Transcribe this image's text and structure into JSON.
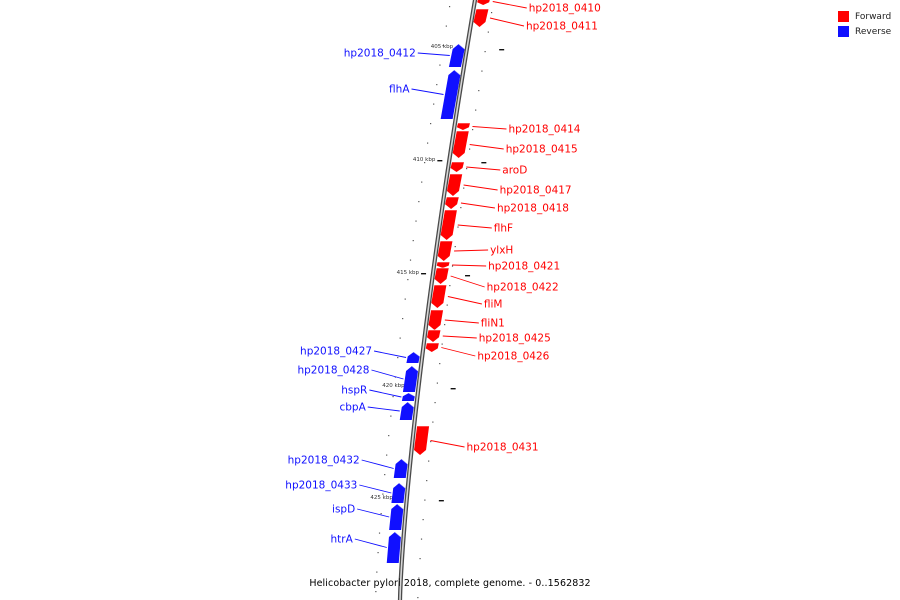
{
  "legend": {
    "forward": {
      "label": "Forward",
      "color": "#ff0000"
    },
    "reverse": {
      "label": "Reverse",
      "color": "#1010ff"
    }
  },
  "caption": "Helicobacter pylori 2018, complete genome. - 0..1562832",
  "ticks": [
    "405 kbp",
    "410 kbp",
    "415 kbp",
    "420 kbp",
    "425 kbp"
  ],
  "genes": [
    {
      "name": "hp2018_0410",
      "strand": "forward"
    },
    {
      "name": "hp2018_0411",
      "strand": "forward"
    },
    {
      "name": "hp2018_0412",
      "strand": "reverse"
    },
    {
      "name": "flhA",
      "strand": "reverse"
    },
    {
      "name": "hp2018_0414",
      "strand": "forward"
    },
    {
      "name": "hp2018_0415",
      "strand": "forward"
    },
    {
      "name": "aroD",
      "strand": "forward"
    },
    {
      "name": "hp2018_0417",
      "strand": "forward"
    },
    {
      "name": "hp2018_0418",
      "strand": "forward"
    },
    {
      "name": "flhF",
      "strand": "forward"
    },
    {
      "name": "ylxH",
      "strand": "forward"
    },
    {
      "name": "hp2018_0421",
      "strand": "forward"
    },
    {
      "name": "hp2018_0422",
      "strand": "forward"
    },
    {
      "name": "fliM",
      "strand": "forward"
    },
    {
      "name": "fliN1",
      "strand": "forward"
    },
    {
      "name": "hp2018_0425",
      "strand": "forward"
    },
    {
      "name": "hp2018_0426",
      "strand": "forward"
    },
    {
      "name": "hp2018_0427",
      "strand": "reverse"
    },
    {
      "name": "hp2018_0428",
      "strand": "reverse"
    },
    {
      "name": "hspR",
      "strand": "reverse"
    },
    {
      "name": "cbpA",
      "strand": "reverse"
    },
    {
      "name": "hp2018_0431",
      "strand": "forward"
    },
    {
      "name": "hp2018_0432",
      "strand": "reverse"
    },
    {
      "name": "hp2018_0433",
      "strand": "reverse"
    },
    {
      "name": "ispD",
      "strand": "reverse"
    },
    {
      "name": "htrA",
      "strand": "reverse"
    }
  ]
}
